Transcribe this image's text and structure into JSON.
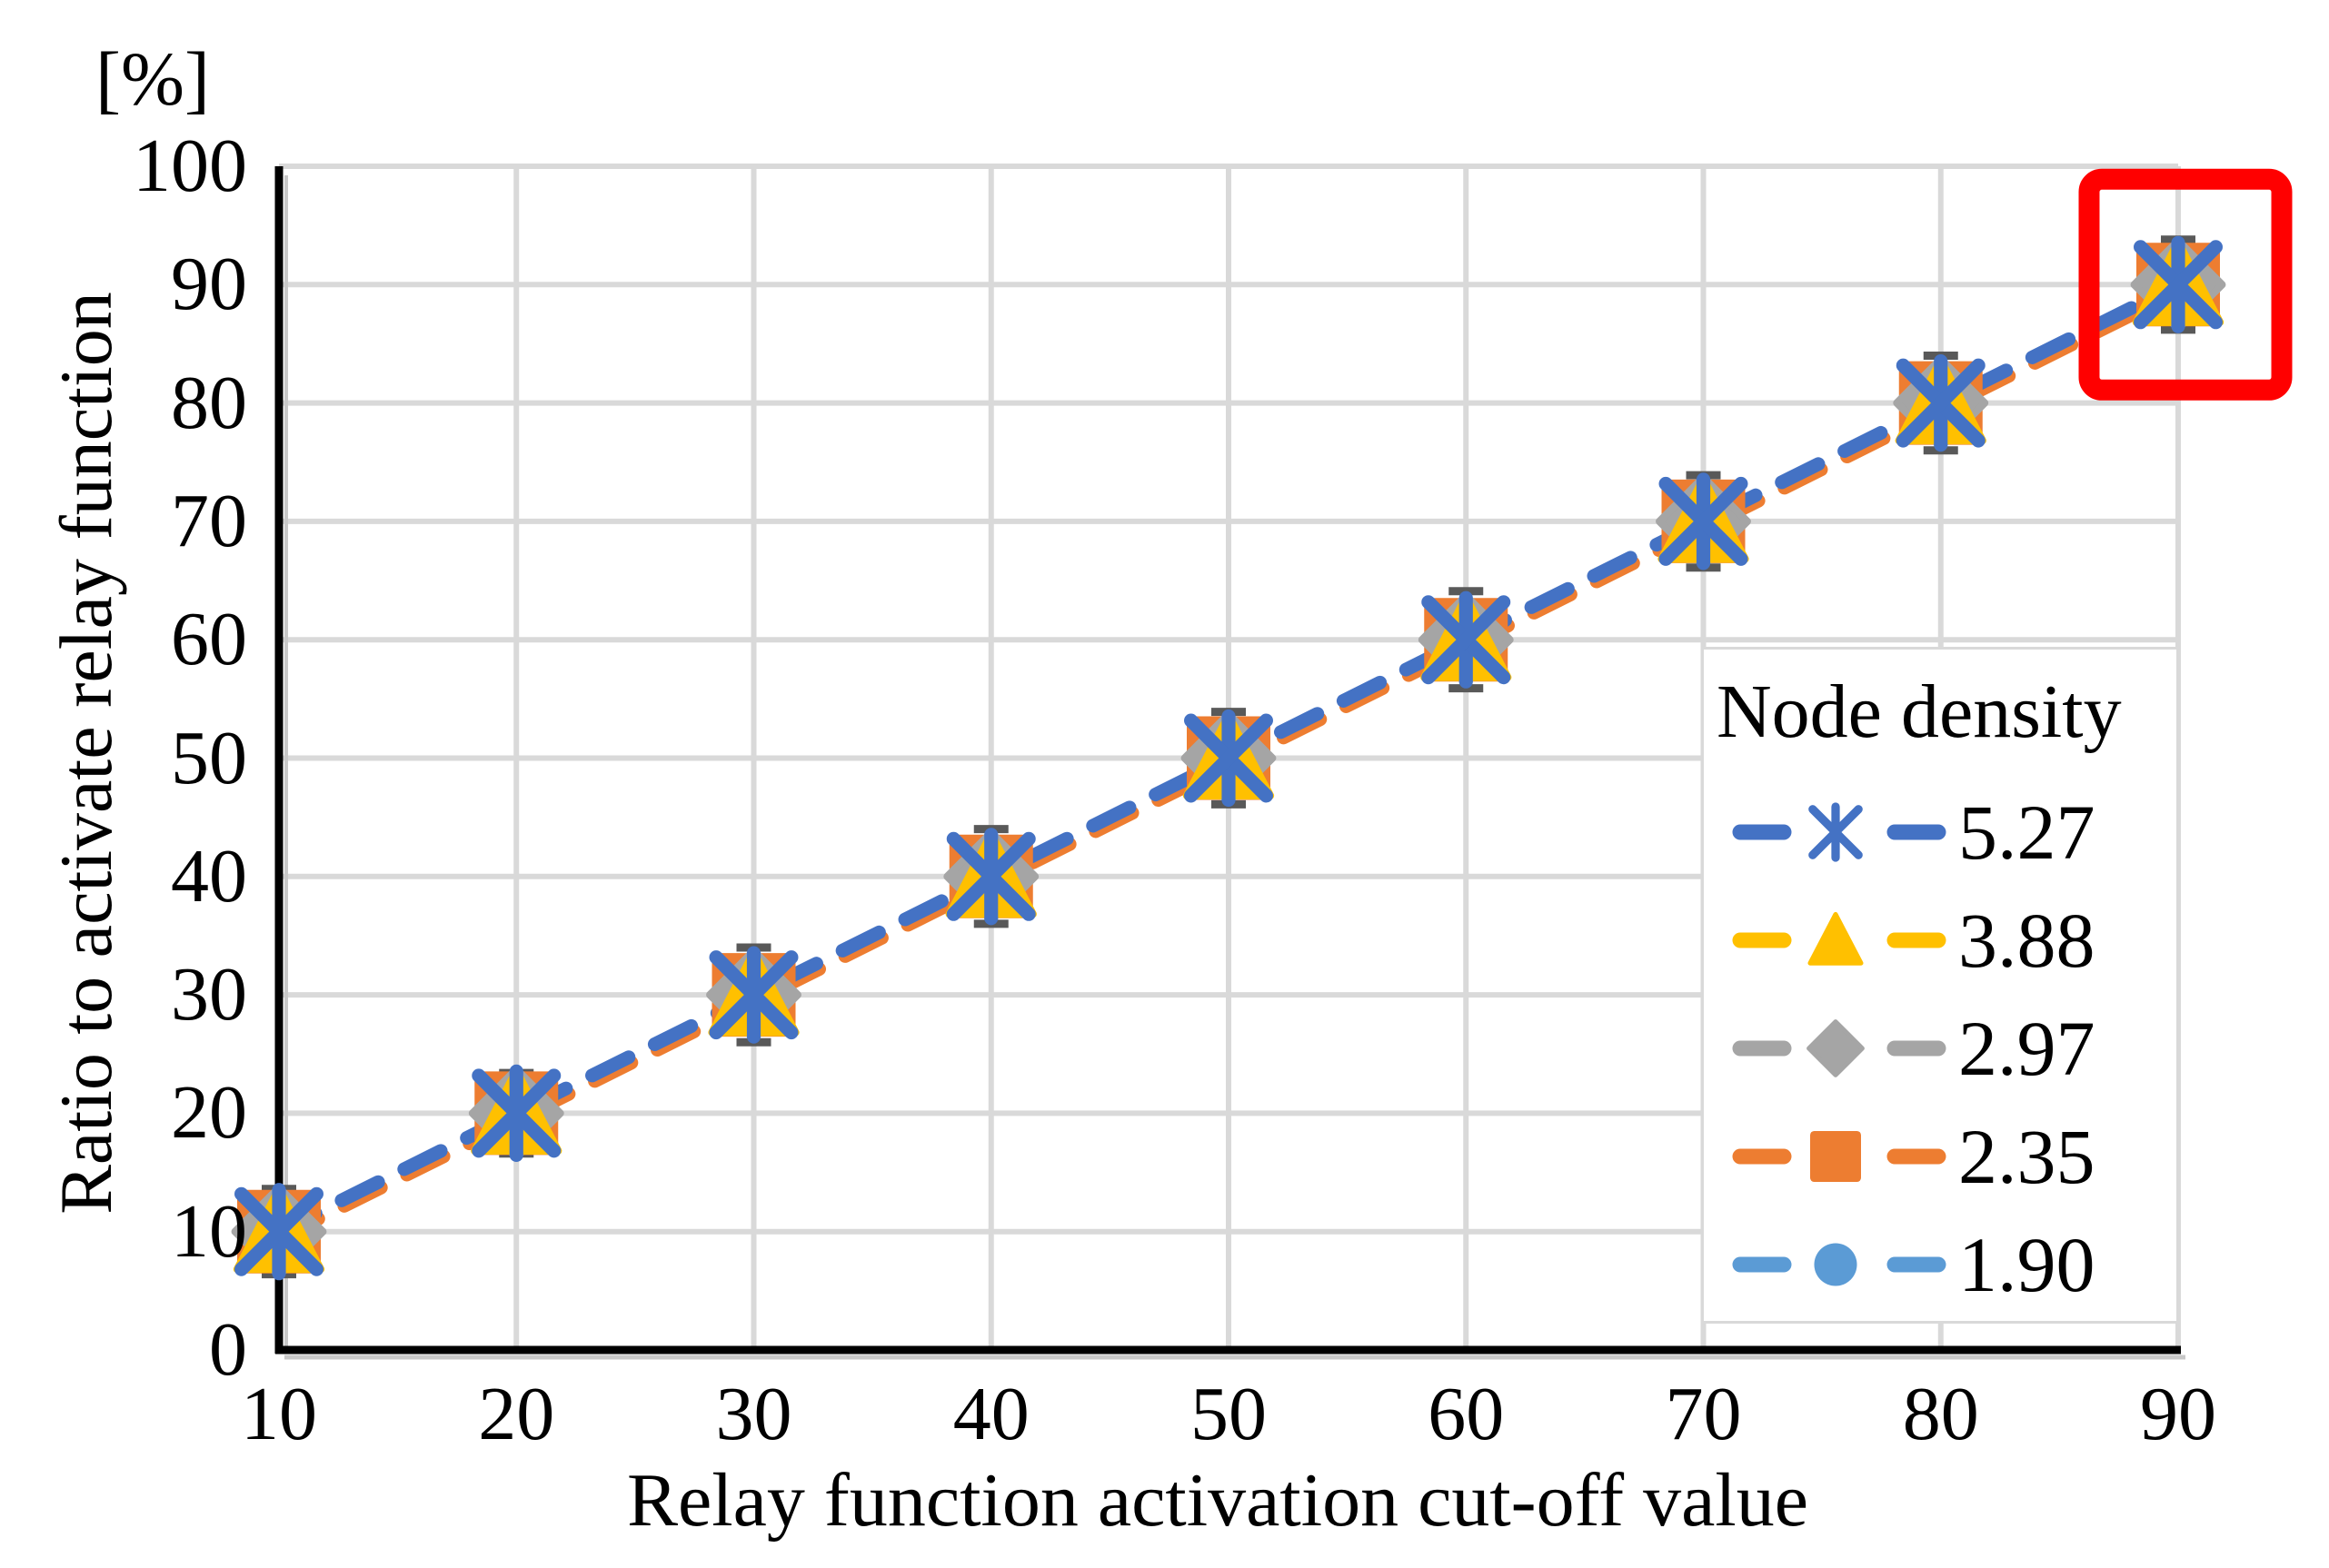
{
  "chart_data": {
    "type": "line",
    "title": "",
    "unit_label": "[%]",
    "xlabel": "Relay function activation cut-off value",
    "ylabel": "Ratio to activate relay function",
    "x_ticks": [
      10,
      20,
      30,
      40,
      50,
      60,
      70,
      80,
      90
    ],
    "y_ticks": [
      0,
      10,
      20,
      30,
      40,
      50,
      60,
      70,
      80,
      90,
      100
    ],
    "xlim": [
      10,
      90
    ],
    "ylim": [
      0,
      100
    ],
    "grid": true,
    "legend_title": "Node density",
    "legend_position": "inside-right",
    "categories": [
      10,
      20,
      30,
      40,
      50,
      60,
      70,
      80,
      90
    ],
    "series": [
      {
        "name": "5.27",
        "color": "#4472C4",
        "marker": "asterisk",
        "values": [
          10,
          20,
          30,
          40,
          50,
          60,
          70,
          80,
          90
        ]
      },
      {
        "name": "3.88",
        "color": "#FFC000",
        "marker": "triangle",
        "values": [
          10,
          20,
          30,
          40,
          50,
          60,
          70,
          80,
          90
        ]
      },
      {
        "name": "2.97",
        "color": "#A5A5A5",
        "marker": "diamond",
        "values": [
          10,
          20,
          30,
          40,
          50,
          60,
          70,
          80,
          90
        ]
      },
      {
        "name": "2.35",
        "color": "#ED7D31",
        "marker": "square",
        "values": [
          10,
          20,
          30,
          40,
          50,
          60,
          70,
          80,
          90
        ]
      },
      {
        "name": "1.90",
        "color": "#5B9BD5",
        "marker": "circle",
        "values": [
          10,
          20,
          30,
          40,
          50,
          60,
          70,
          80,
          90
        ]
      }
    ],
    "error_bars": {
      "plus_minus": [
        3.6,
        3.4,
        4.0,
        4.0,
        3.9,
        4.1,
        3.9,
        4.0,
        3.8
      ],
      "color": "#595959"
    },
    "annotation": {
      "type": "highlight-box",
      "x": 90,
      "y": 90,
      "color": "#FF0000"
    },
    "colors": {
      "gridline": "#D9D9D9",
      "axis": "#000000",
      "axis_shadow": "#C8C8C8",
      "line_dash_main": "#4472C4",
      "line_dash_under": "#ED7D31"
    }
  }
}
